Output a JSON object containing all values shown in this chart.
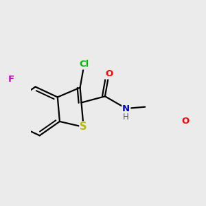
{
  "bg_color": "#ebebeb",
  "bond_color": "#000000",
  "bond_width": 1.6,
  "atom_colors": {
    "S": "#b8b800",
    "Cl": "#00bb00",
    "F": "#cc00cc",
    "O": "#ff0000",
    "N": "#0000cc",
    "C": "#000000",
    "H": "#555555"
  },
  "font_size": 9.5
}
